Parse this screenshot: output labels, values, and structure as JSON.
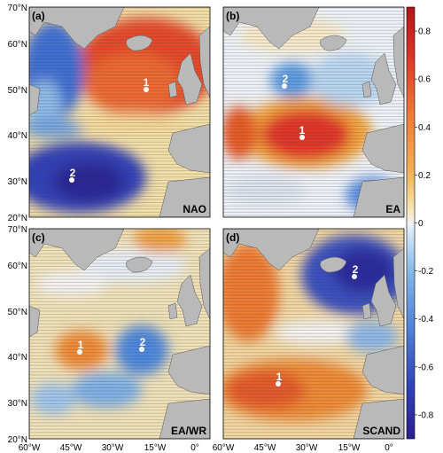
{
  "panels": [
    {
      "tag": "(a)",
      "name": "NAO",
      "points": [
        {
          "label": "1"
        },
        {
          "label": "2"
        }
      ]
    },
    {
      "tag": "(b)",
      "name": "EA",
      "points": [
        {
          "label": "1"
        },
        {
          "label": "2"
        }
      ]
    },
    {
      "tag": "(c)",
      "name": "EA/WR",
      "points": [
        {
          "label": "1"
        },
        {
          "label": "2"
        }
      ]
    },
    {
      "tag": "(d)",
      "name": "SCAND",
      "points": [
        {
          "label": "1"
        },
        {
          "label": "2"
        }
      ]
    }
  ],
  "lat_labels": [
    "70°N",
    "60°N",
    "50°N",
    "40°N",
    "30°N",
    "20°N"
  ],
  "lon_labels": [
    "60°W",
    "45°W",
    "30°W",
    "15°W",
    "0°"
  ],
  "colorbar": {
    "ticks": [
      "0.8",
      "0.6",
      "0.4",
      "0.2",
      "0",
      "-0.2",
      "-0.4",
      "-0.6",
      "-0.8"
    ],
    "range": [
      -0.9,
      0.9
    ]
  },
  "colors": {
    "strong_positive": "#d7261e",
    "positive": "#f2a63a",
    "neutral": "#f4f4f4",
    "negative": "#5f97d6",
    "strong_negative": "#2a2fa8",
    "land": "#b9b9b9"
  }
}
